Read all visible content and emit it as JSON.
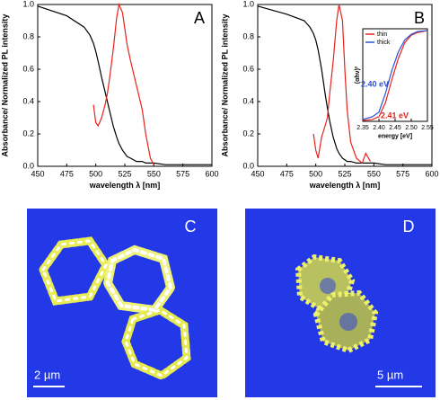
{
  "chart_data": [
    {
      "type": "line",
      "annotation": "A",
      "xlabel": "wavelength λ [nm]",
      "ylabel": "Absorbance/ Normalized PL intensity",
      "xlim": [
        450,
        600
      ],
      "xticks": [
        450,
        475,
        500,
        525,
        550,
        575,
        600
      ],
      "ylim": [
        0,
        1
      ],
      "yticks": [
        {
          "value": 0,
          "label": "0.0"
        },
        0.2,
        0.4,
        0.6,
        0.8,
        {
          "value": 1,
          "label": "1.0"
        }
      ],
      "x": [
        450,
        475,
        490,
        495,
        498,
        500,
        502,
        505,
        508,
        510,
        512,
        515,
        518,
        520,
        523,
        525,
        527,
        530,
        535,
        540,
        543,
        547,
        550,
        560,
        575,
        600
      ],
      "series": [
        {
          "color": "#000000",
          "values": [
            0.99,
            0.93,
            0.86,
            0.81,
            0.76,
            0.71,
            0.65,
            0.55,
            0.46,
            0.4,
            0.34,
            0.25,
            0.18,
            0.14,
            0.1,
            0.08,
            0.06,
            0.05,
            0.03,
            0.03,
            0.02,
            0.02,
            0.02,
            0.01,
            0.01,
            0.01
          ]
        },
        {
          "color": "#e8231d",
          "values": [
            null,
            null,
            null,
            null,
            0.38,
            0.27,
            0.25,
            0.3,
            0.38,
            0.45,
            0.55,
            0.72,
            0.92,
            1.0,
            0.95,
            0.85,
            0.75,
            0.65,
            0.5,
            0.35,
            0.2,
            0.05,
            0.01,
            null,
            null,
            null
          ]
        }
      ]
    },
    {
      "type": "line",
      "annotation": "B",
      "xlabel": "wavelength λ [nm]",
      "ylabel": "Absorbance/ Normalized PL intensity",
      "xlim": [
        450,
        600
      ],
      "xticks": [
        450,
        475,
        500,
        525,
        550,
        575,
        600
      ],
      "ylim": [
        0,
        1
      ],
      "yticks": [
        {
          "value": 0,
          "label": "0.0"
        },
        0.2,
        0.4,
        0.6,
        0.8,
        {
          "value": 1,
          "label": "1.0"
        }
      ],
      "x": [
        450,
        475,
        490,
        495,
        498,
        500,
        502,
        505,
        508,
        510,
        512,
        515,
        518,
        520,
        523,
        525,
        527,
        530,
        535,
        540,
        543,
        547,
        550,
        560,
        575,
        600
      ],
      "series": [
        {
          "color": "#000000",
          "values": [
            0.99,
            0.94,
            0.9,
            0.86,
            0.82,
            0.78,
            0.72,
            0.6,
            0.45,
            0.36,
            0.28,
            0.18,
            0.11,
            0.08,
            0.05,
            0.04,
            0.03,
            0.03,
            0.02,
            0.02,
            0.02,
            0.02,
            0.02,
            0.01,
            0.01,
            0.01
          ]
        },
        {
          "color": "#e8231d",
          "values": [
            null,
            null,
            null,
            null,
            0.2,
            0.1,
            0.05,
            0.18,
            0.25,
            0.3,
            0.45,
            0.65,
            0.9,
            1.0,
            0.9,
            0.6,
            0.35,
            0.15,
            0.05,
            0.02,
            0.08,
            0.03,
            null,
            null,
            null,
            null
          ]
        }
      ]
    },
    {
      "type": "line",
      "xlabel": "energy [eV]",
      "ylabel": "(αhν)²",
      "xlim": [
        2.35,
        2.55
      ],
      "xticks": [
        2.35,
        {
          "value": 2.4,
          "label": "2.40"
        },
        2.45,
        {
          "value": 2.5,
          "label": "2.50"
        },
        2.55
      ],
      "ylim": [
        0,
        1
      ],
      "legend": "upper left",
      "x": [
        2.35,
        2.38,
        2.4,
        2.42,
        2.44,
        2.46,
        2.48,
        2.5,
        2.52,
        2.55
      ],
      "series": [
        {
          "name": "thin",
          "color": "#e8231d",
          "values": [
            0.01,
            0.02,
            0.05,
            0.2,
            0.45,
            0.68,
            0.85,
            0.93,
            0.96,
            0.98
          ]
        },
        {
          "name": "thick",
          "color": "#2a52d8",
          "values": [
            0.02,
            0.05,
            0.1,
            0.3,
            0.55,
            0.75,
            0.88,
            0.94,
            0.97,
            0.98
          ]
        }
      ],
      "annotations": [
        {
          "text": "2.40 eV",
          "color": "#2a52d8"
        },
        {
          "text": "2.41 eV",
          "color": "#e8231d"
        }
      ]
    }
  ],
  "images": [
    {
      "label": "C",
      "scale_bar": "2 µm"
    },
    {
      "label": "D",
      "scale_bar": "5 µm"
    }
  ]
}
